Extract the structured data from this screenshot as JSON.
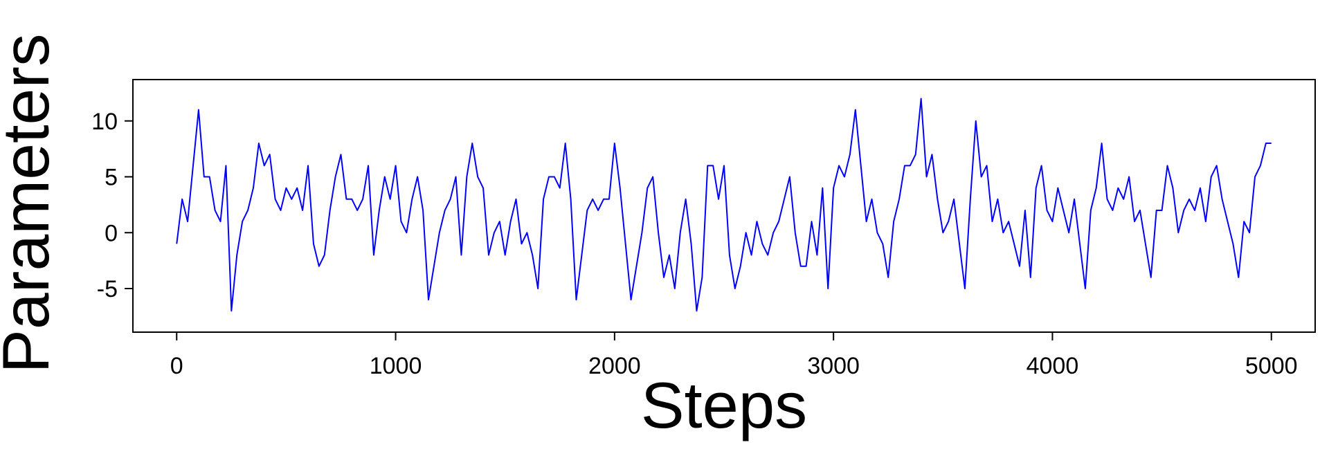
{
  "chart_data": {
    "type": "line",
    "x_label": "Steps",
    "y_label": "Parameters",
    "xlim": [
      -200,
      5200
    ],
    "ylim": [
      -8.9,
      13.7
    ],
    "xticks": [
      0,
      1000,
      2000,
      3000,
      4000,
      5000
    ],
    "yticks": [
      -5,
      0,
      5,
      10
    ],
    "color": "#0000ff",
    "x": [
      0,
      25,
      50,
      75,
      100,
      125,
      150,
      175,
      200,
      225,
      250,
      275,
      300,
      325,
      350,
      375,
      400,
      425,
      450,
      475,
      500,
      525,
      550,
      575,
      600,
      625,
      650,
      675,
      700,
      725,
      750,
      775,
      800,
      825,
      850,
      875,
      900,
      925,
      950,
      975,
      1000,
      1025,
      1050,
      1075,
      1100,
      1125,
      1150,
      1175,
      1200,
      1225,
      1250,
      1275,
      1300,
      1325,
      1350,
      1375,
      1400,
      1425,
      1450,
      1475,
      1500,
      1525,
      1550,
      1575,
      1600,
      1625,
      1650,
      1675,
      1700,
      1725,
      1750,
      1775,
      1800,
      1825,
      1850,
      1875,
      1900,
      1925,
      1950,
      1975,
      2000,
      2025,
      2050,
      2075,
      2100,
      2125,
      2150,
      2175,
      2200,
      2225,
      2250,
      2275,
      2300,
      2325,
      2350,
      2375,
      2400,
      2425,
      2450,
      2475,
      2500,
      2525,
      2550,
      2575,
      2600,
      2625,
      2650,
      2675,
      2700,
      2725,
      2750,
      2775,
      2800,
      2825,
      2850,
      2875,
      2900,
      2925,
      2950,
      2975,
      3000,
      3025,
      3050,
      3075,
      3100,
      3125,
      3150,
      3175,
      3200,
      3225,
      3250,
      3275,
      3300,
      3325,
      3350,
      3375,
      3400,
      3425,
      3450,
      3475,
      3500,
      3525,
      3550,
      3575,
      3600,
      3625,
      3650,
      3675,
      3700,
      3725,
      3750,
      3775,
      3800,
      3825,
      3850,
      3875,
      3900,
      3925,
      3950,
      3975,
      4000,
      4025,
      4050,
      4075,
      4100,
      4125,
      4150,
      4175,
      4200,
      4225,
      4250,
      4275,
      4300,
      4325,
      4350,
      4375,
      4400,
      4425,
      4450,
      4475,
      4500,
      4525,
      4550,
      4575,
      4600,
      4625,
      4650,
      4675,
      4700,
      4725,
      4750,
      4775,
      4800,
      4825,
      4850,
      4875,
      4900,
      4925,
      4950,
      4975,
      5000
    ],
    "values": [
      -1,
      3,
      1,
      6,
      11,
      5,
      5,
      2,
      1,
      6,
      -7,
      -2,
      1,
      2,
      4,
      8,
      6,
      7,
      3,
      2,
      4,
      3,
      4,
      2,
      6,
      -1,
      -3,
      -2,
      2,
      5,
      7,
      3,
      3,
      2,
      3,
      6,
      -2,
      2,
      5,
      3,
      6,
      1,
      0,
      3,
      5,
      2,
      -6,
      -3,
      0,
      2,
      3,
      5,
      -2,
      5,
      8,
      5,
      4,
      -2,
      0,
      1,
      -2,
      1,
      3,
      -1,
      0,
      -2,
      -5,
      3,
      5,
      5,
      4,
      8,
      3,
      -6,
      -2,
      2,
      3,
      2,
      3,
      3,
      8,
      4,
      -1,
      -6,
      -3,
      0,
      4,
      5,
      0,
      -4,
      -2,
      -5,
      0,
      3,
      -1,
      -7,
      -4,
      6,
      6,
      3,
      6,
      -2,
      -5,
      -3,
      0,
      -2,
      1,
      -1,
      -2,
      0,
      1,
      3,
      5,
      0,
      -3,
      -3,
      1,
      -2,
      4,
      -5,
      4,
      6,
      5,
      7,
      11,
      6,
      1,
      3,
      0,
      -1,
      -4,
      1,
      3,
      6,
      6,
      7,
      12,
      5,
      7,
      3,
      0,
      1,
      3,
      -1,
      -5,
      3,
      10,
      5,
      6,
      1,
      3,
      0,
      1,
      -1,
      -3,
      2,
      -4,
      4,
      6,
      2,
      1,
      4,
      2,
      0,
      3,
      -1,
      -5,
      2,
      4,
      8,
      3,
      2,
      4,
      3,
      5,
      1,
      2,
      -1,
      -4,
      2,
      2,
      6,
      4,
      0,
      2,
      3,
      2,
      4,
      1,
      5,
      6,
      3,
      1,
      -1,
      -4,
      1,
      0,
      5,
      6,
      8,
      8
    ]
  }
}
